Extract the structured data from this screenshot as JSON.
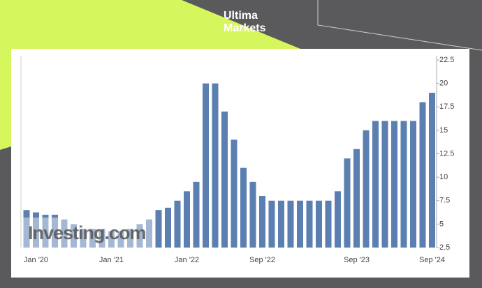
{
  "brand": {
    "line1": "Ultima",
    "line2": "Markets"
  },
  "chart_data": {
    "type": "bar",
    "categories": [
      null,
      "Jan '20",
      null,
      null,
      null,
      null,
      null,
      null,
      null,
      "Jan '21",
      null,
      null,
      null,
      null,
      null,
      null,
      null,
      "Jan '22",
      null,
      null,
      null,
      null,
      null,
      null,
      null,
      "Sep '22",
      null,
      null,
      null,
      null,
      null,
      null,
      null,
      null,
      null,
      "Sep '23",
      null,
      null,
      null,
      null,
      null,
      null,
      null,
      "Sep '24"
    ],
    "values": [
      6.5,
      6.25,
      6,
      6,
      5.5,
      5,
      4.5,
      4.5,
      4.5,
      4.25,
      4.25,
      4.5,
      5,
      5.5,
      6.5,
      6.75,
      7.5,
      8.5,
      9.5,
      20,
      20,
      17,
      14,
      11,
      9.5,
      8,
      7.5,
      7.5,
      7.5,
      7.5,
      7.5,
      7.5,
      7.5,
      8.5,
      12,
      13,
      15,
      16,
      16,
      16,
      16,
      16,
      18,
      19
    ],
    "color": "#5b7fb0",
    "ylim": [
      2.5,
      22.5
    ],
    "yticks": [
      2.5,
      5,
      7.5,
      10,
      12.5,
      15,
      17.5,
      20,
      22.5
    ],
    "y_axis_side": "right",
    "watermark": "Investing.com"
  }
}
